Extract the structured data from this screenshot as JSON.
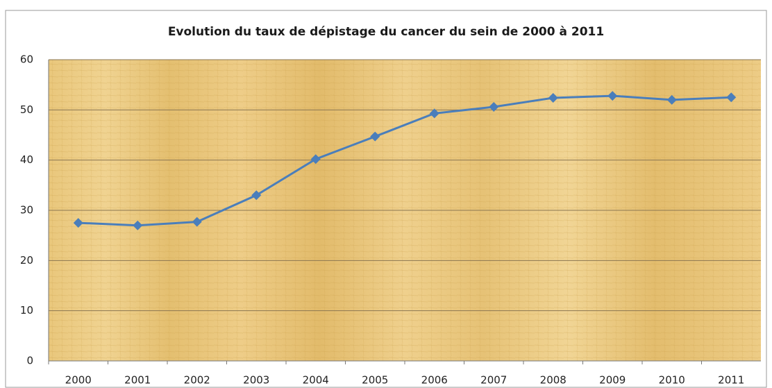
{
  "chart_data": {
    "type": "line",
    "title": "Evolution du taux de dépistage du cancer du sein de 2000 à 2011",
    "categories": [
      "2000",
      "2001",
      "2002",
      "2003",
      "2004",
      "2005",
      "2006",
      "2007",
      "2008",
      "2009",
      "2010",
      "2011"
    ],
    "series": [
      {
        "name": "Taux de dépistage",
        "color": "#4a7ebb",
        "values": [
          27.5,
          27,
          27.7,
          33,
          40.2,
          44.7,
          49.3,
          50.6,
          52.4,
          52.8,
          52,
          52.5
        ]
      }
    ],
    "ylim": [
      0,
      60
    ],
    "yticks": [
      0,
      10,
      20,
      30,
      40,
      50,
      60
    ],
    "grid": true
  }
}
